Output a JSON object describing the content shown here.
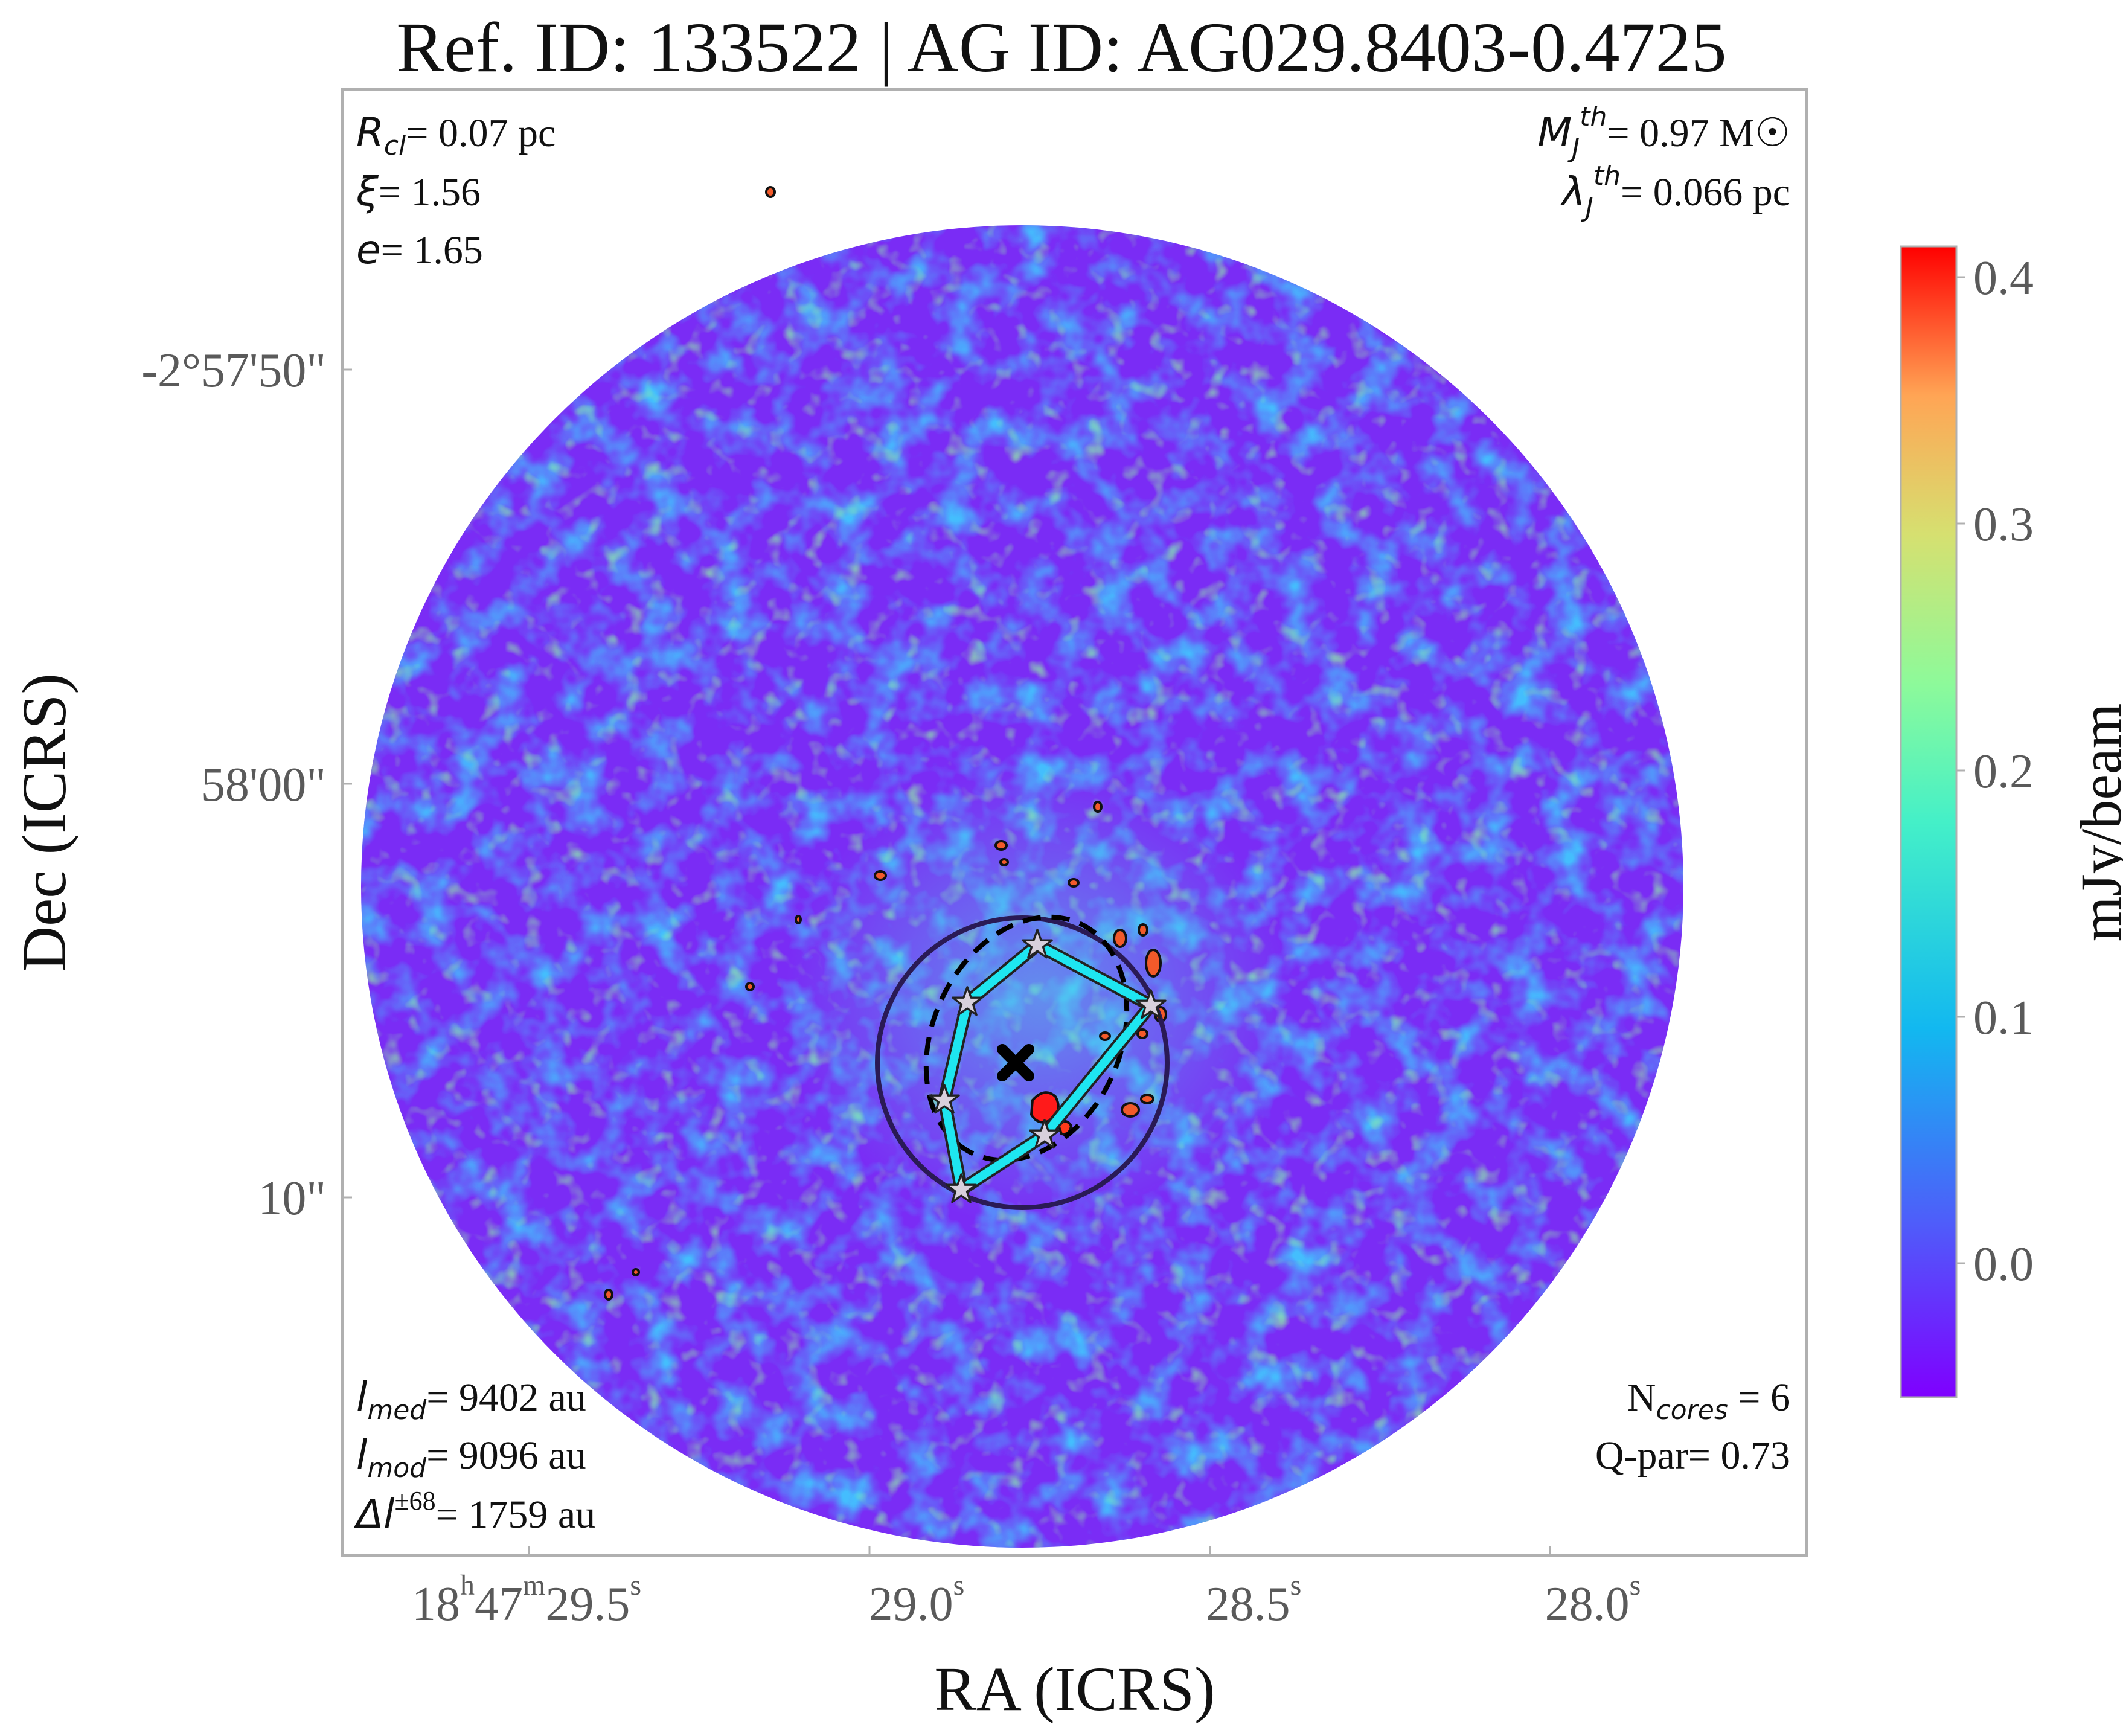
{
  "title": "Ref. ID: 133522 | AG ID: AG029.8403-0.4725",
  "axes": {
    "xlabel": "RA (ICRS)",
    "ylabel": "Dec (ICRS)",
    "x_ticks": [
      {
        "h": "18",
        "m": "47",
        "s": "29.5"
      },
      {
        "h": "",
        "m": "",
        "s": "29.0"
      },
      {
        "h": "",
        "m": "",
        "s": "28.5"
      },
      {
        "h": "",
        "m": "",
        "s": "28.0"
      }
    ],
    "y_ticks": [
      "-2°57'50\"",
      "58'00\"",
      "10\""
    ]
  },
  "colorbar": {
    "label": "mJy/beam",
    "ticks": [
      "0.4",
      "0.3",
      "0.2",
      "0.1",
      "0.0"
    ],
    "range": [
      -0.05,
      0.42
    ],
    "colormap": "rainbow"
  },
  "annotations": {
    "top_left": [
      {
        "sym": "R",
        "sub": "cl",
        "text": "= 0.07 pc"
      },
      {
        "sym": "ξ",
        "sub": "",
        "text": "= 1.56"
      },
      {
        "sym": "e",
        "sub": "",
        "text": "= 1.65"
      }
    ],
    "top_right": [
      {
        "sym": "M",
        "sub": "J",
        "sup": "th",
        "text": "= 0.97 M☉"
      },
      {
        "sym": "λ",
        "sub": "J",
        "sup": "th",
        "text": "= 0.066 pc"
      }
    ],
    "bottom_left": [
      {
        "sym": "l",
        "sub": "med",
        "text": "= 9402 au"
      },
      {
        "sym": "l",
        "sub": "mod",
        "text": "= 9096 au"
      },
      {
        "sym": "Δl",
        "sup": "±68",
        "text": "= 1759 au"
      }
    ],
    "bottom_right": [
      {
        "text": "N",
        "sub": "cores",
        "tail": " = 6"
      },
      {
        "text": "Q-par= 0.73"
      }
    ]
  },
  "cores_count": 6,
  "colors": {
    "mst_line": "#1ee6f0",
    "clump_circle": "#2a1a55",
    "ellipse": "#000000",
    "background_map": "#7a2cf5",
    "core_star": "#d8d0dc"
  }
}
